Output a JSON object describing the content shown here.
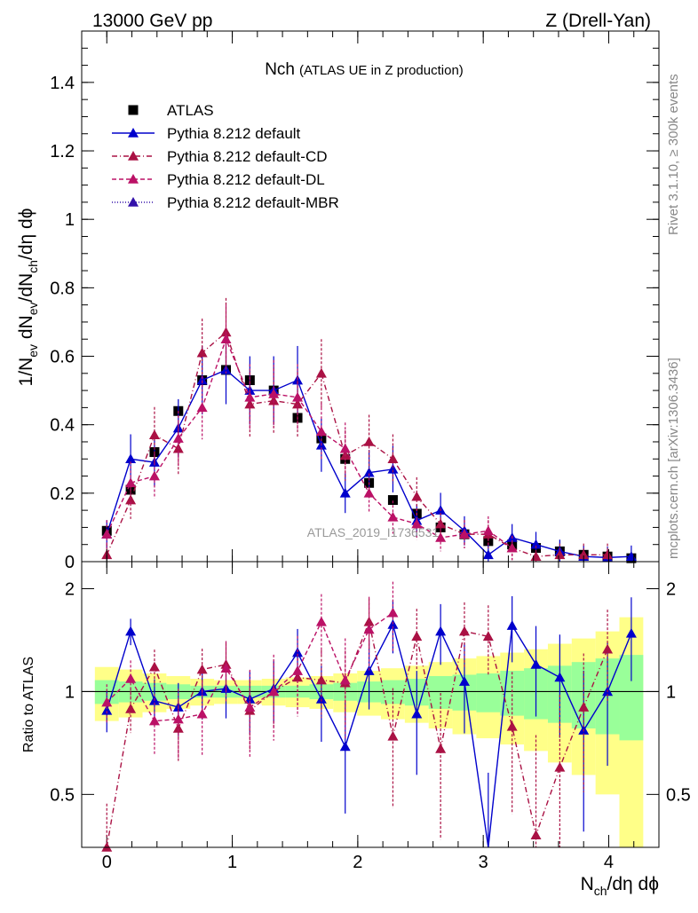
{
  "header": {
    "left": "13000 GeV pp",
    "right": "Z (Drell-Yan)"
  },
  "side_notes": {
    "rivet": "Rivet 3.1.10, ≥ 300k events",
    "mcplots": "mcplots.cern.ch [arXiv:1306.3436]"
  },
  "watermark": "ATLAS_2019_I1736531",
  "chart_data": [
    {
      "type": "scatter",
      "title": "Nch",
      "subtitle": "(ATLAS UE in Z production)",
      "ylabel": {
        "base": "1/N",
        "ev": "ev",
        "mid": " dN",
        "ev2": "ev",
        "div": "/dN",
        "ch": "ch",
        "tail": "/dη dϕ"
      },
      "xlim": [
        -0.2,
        4.4
      ],
      "ylim": [
        0,
        1.55
      ],
      "yticks": [
        0,
        0.2,
        0.4,
        0.6,
        0.8,
        1,
        1.2,
        1.4
      ],
      "ytick_labels": [
        "0",
        "0.2",
        "0.4",
        "0.6",
        "0.8",
        "1",
        "1.2",
        "1.4"
      ],
      "series": [
        {
          "name": "ATLAS",
          "color": "#000000",
          "marker": "square",
          "x": [
            0,
            0.19,
            0.38,
            0.57,
            0.76,
            0.95,
            1.14,
            1.33,
            1.52,
            1.71,
            1.9,
            2.09,
            2.28,
            2.47,
            2.66,
            2.85,
            3.04,
            3.23,
            3.42,
            3.61,
            3.8,
            3.99,
            4.18
          ],
          "y": [
            0.09,
            0.21,
            0.32,
            0.44,
            0.53,
            0.56,
            0.53,
            0.5,
            0.42,
            0.36,
            0.3,
            0.23,
            0.18,
            0.14,
            0.1,
            0.08,
            0.06,
            0.05,
            0.04,
            0.03,
            0.02,
            0.015,
            0.01
          ]
        },
        {
          "name": "Pythia 8.212 default",
          "color": "#0000cc",
          "marker": "triangle",
          "dash": "solid",
          "x": [
            0,
            0.19,
            0.38,
            0.57,
            0.76,
            0.95,
            1.14,
            1.33,
            1.52,
            1.71,
            1.9,
            2.09,
            2.28,
            2.47,
            2.66,
            2.85,
            3.04,
            3.23,
            3.42,
            3.61,
            3.8,
            3.99,
            4.18
          ],
          "y": [
            0.08,
            0.3,
            0.29,
            0.39,
            0.53,
            0.56,
            0.5,
            0.5,
            0.53,
            0.34,
            0.2,
            0.26,
            0.27,
            0.12,
            0.15,
            0.09,
            0.02,
            0.07,
            0.05,
            0.03,
            0.015,
            0.012,
            0.015
          ]
        },
        {
          "name": "Pythia 8.212 default-CD",
          "color": "#aa1144",
          "marker": "triangle",
          "dash": "6,3,1,3",
          "x": [
            0,
            0.19,
            0.38,
            0.57,
            0.76,
            0.95,
            1.14,
            1.33,
            1.52,
            1.71,
            1.9,
            2.09,
            2.28,
            2.47,
            2.66,
            2.85,
            3.04,
            3.23,
            3.42,
            3.61,
            3.8,
            3.99
          ],
          "y": [
            0.02,
            0.18,
            0.37,
            0.33,
            0.61,
            0.67,
            0.46,
            0.47,
            0.46,
            0.55,
            0.31,
            0.35,
            0.3,
            0.19,
            0.11,
            0.08,
            0.08,
            0.04,
            0.015,
            0.02,
            0.02,
            0.02
          ]
        },
        {
          "name": "Pythia 8.212 default-DL",
          "color": "#bb1166",
          "marker": "triangle",
          "dash": "5,3",
          "x": [
            0,
            0.19,
            0.38,
            0.57,
            0.76,
            0.95,
            1.14,
            1.33,
            1.52,
            1.71,
            1.9,
            2.09,
            2.28,
            2.47,
            2.66,
            2.85,
            3.04,
            3.23
          ],
          "y": [
            0.08,
            0.23,
            0.25,
            0.36,
            0.45,
            0.65,
            0.48,
            0.49,
            0.48,
            0.38,
            0.33,
            0.2,
            0.13,
            0.11,
            0.07,
            0.08,
            0.09,
            0.04
          ]
        },
        {
          "name": "Pythia 8.212 default-MBR",
          "color": "#3311aa",
          "marker": "triangle",
          "dash": "1,2",
          "x": [],
          "y": []
        }
      ]
    },
    {
      "type": "scatter",
      "title": "",
      "ylabel": "Ratio to ATLAS",
      "xlabel": {
        "base": "N",
        "sub": "ch",
        "tail": "/dη dϕ"
      },
      "xlim": [
        -0.2,
        4.4
      ],
      "ylim": [
        0.35,
        2.4
      ],
      "xticks": [
        0,
        1,
        2,
        3,
        4
      ],
      "xtick_labels": [
        "0",
        "1",
        "2",
        "3",
        "4"
      ],
      "yticks": [
        0.5,
        1,
        2
      ],
      "ytick_labels": [
        "0.5",
        "1",
        "2"
      ],
      "reference": 1,
      "band_inner": {
        "color": "#99ff99",
        "half_width": [
          0.08,
          0.07,
          0.06,
          0.05,
          0.04,
          0.04,
          0.04,
          0.04,
          0.04,
          0.05,
          0.06,
          0.07,
          0.08,
          0.09,
          0.11,
          0.12,
          0.13,
          0.15,
          0.17,
          0.19,
          0.22,
          0.25,
          0.28
        ]
      },
      "band_outer": {
        "color": "#ffff88",
        "half_width": [
          0.18,
          0.16,
          0.13,
          0.11,
          0.09,
          0.08,
          0.08,
          0.09,
          0.1,
          0.11,
          0.13,
          0.15,
          0.17,
          0.19,
          0.22,
          0.25,
          0.27,
          0.3,
          0.33,
          0.38,
          0.43,
          0.5,
          0.65
        ]
      },
      "series": [
        {
          "name": "Pythia 8.212 default",
          "color": "#0000cc",
          "dash": "solid",
          "x": [
            0,
            0.19,
            0.38,
            0.57,
            0.76,
            0.95,
            1.14,
            1.33,
            1.52,
            1.71,
            1.9,
            2.09,
            2.28,
            2.47,
            2.66,
            2.85,
            3.04,
            3.23,
            3.42,
            3.61,
            3.8,
            3.99,
            4.18
          ],
          "y": [
            0.88,
            1.5,
            0.94,
            0.9,
            1.0,
            1.02,
            0.95,
            1.02,
            1.3,
            0.95,
            0.69,
            1.15,
            1.57,
            0.86,
            1.5,
            1.07,
            0.25,
            1.56,
            1.2,
            1.1,
            0.77,
            1.0,
            1.48
          ]
        },
        {
          "name": "Pythia 8.212 default-CD",
          "color": "#aa1144",
          "dash": "6,3,1,3",
          "x": [
            0,
            0.19,
            0.38,
            0.57,
            0.76,
            0.95,
            1.14,
            1.33,
            1.52,
            1.71,
            1.9,
            2.09,
            2.28,
            2.47,
            2.66,
            2.85,
            3.04,
            3.23,
            3.42,
            3.61,
            3.8,
            3.99
          ],
          "y": [
            0.35,
            0.89,
            1.18,
            0.78,
            1.16,
            1.2,
            0.88,
            1.0,
            1.1,
            1.08,
            1.06,
            1.6,
            0.74,
            1.45,
            0.68,
            1.5,
            1.45,
            0.79,
            0.38,
            0.6,
            0.9,
            1.33
          ]
        },
        {
          "name": "Pythia 8.212 default-DL",
          "color": "#bb1166",
          "dash": "5,3",
          "x": [
            0,
            0.19,
            0.38,
            0.57,
            0.76,
            0.95,
            1.14,
            1.33,
            1.52,
            1.71,
            1.9,
            2.09,
            2.28
          ],
          "y": [
            0.93,
            1.09,
            0.82,
            0.83,
            0.86,
            1.17,
            0.9,
            1.0,
            1.15,
            1.6,
            1.08,
            1.52,
            1.7
          ]
        }
      ]
    }
  ]
}
